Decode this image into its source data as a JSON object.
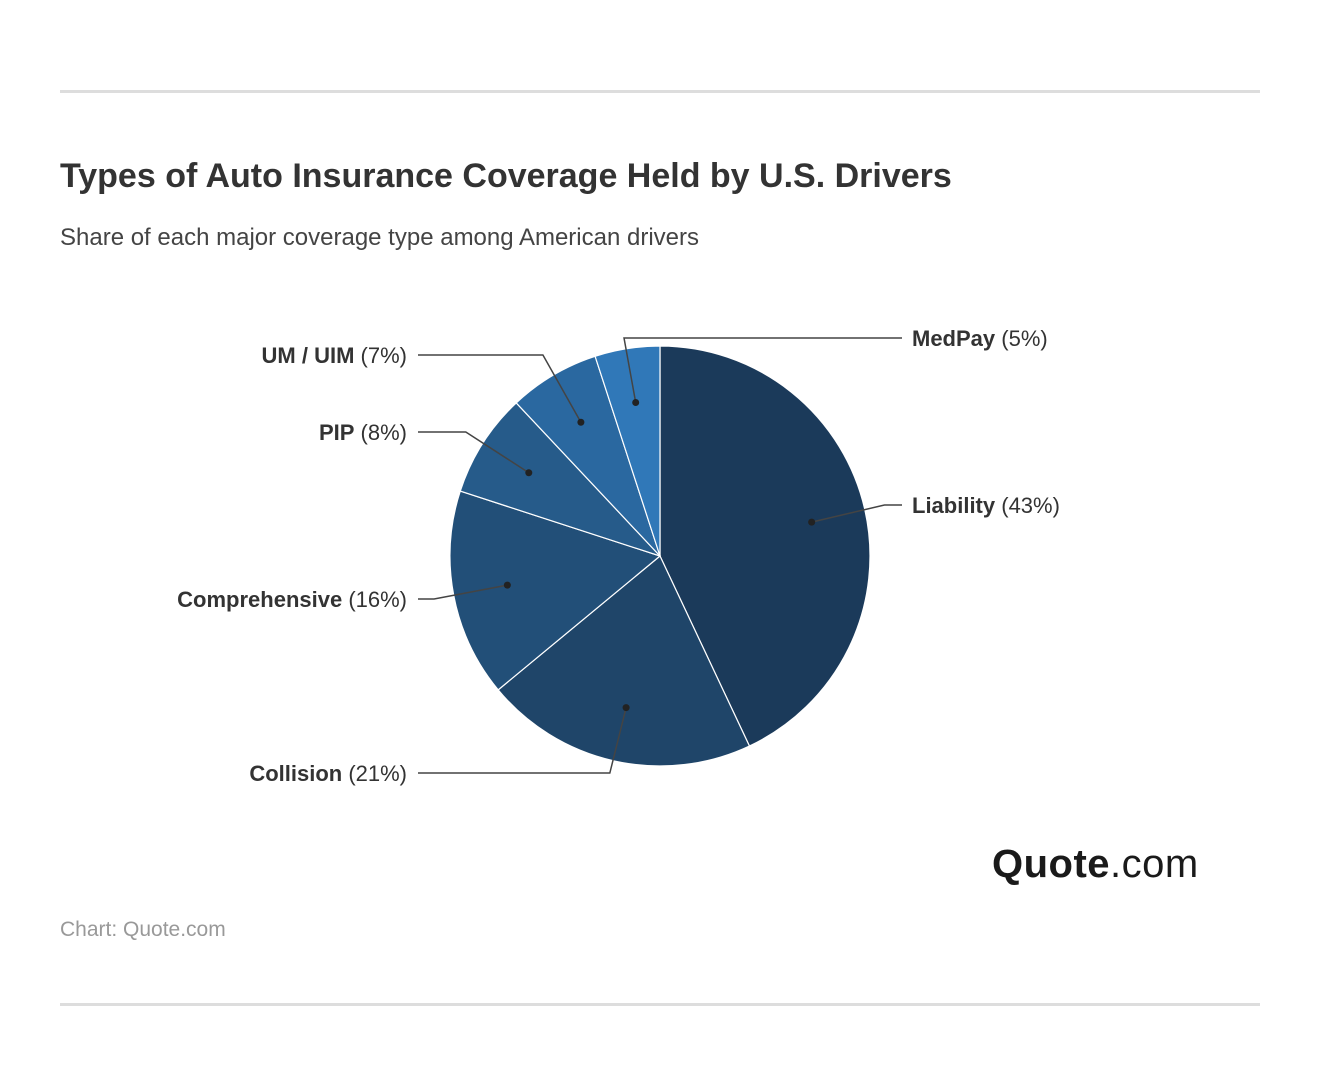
{
  "header": {
    "title": "Types of Auto Insurance Coverage Held by U.S. Drivers",
    "subtitle": "Share of each major coverage type among American drivers"
  },
  "footer": {
    "source": "Chart: Quote.com",
    "logo_brand": "Quote",
    "logo_tld": ".com"
  },
  "chart_data": {
    "type": "pie",
    "title": "Types of Auto Insurance Coverage Held by U.S. Drivers",
    "subtitle": "Share of each major coverage type among American drivers",
    "start_angle_deg": 0,
    "direction": "clockwise",
    "slices": [
      {
        "label": "Liability",
        "value": 43,
        "value_label": "(43%)",
        "color": "#1b3a5a"
      },
      {
        "label": "Collision",
        "value": 21,
        "value_label": "(21%)",
        "color": "#1f4569"
      },
      {
        "label": "Comprehensive",
        "value": 16,
        "value_label": "(16%)",
        "color": "#224f78"
      },
      {
        "label": "PIP",
        "value": 8,
        "value_label": "(8%)",
        "color": "#265b8a"
      },
      {
        "label": "UM / UIM",
        "value": 7,
        "value_label": "(7%)",
        "color": "#2a68a0"
      },
      {
        "label": "MedPay",
        "value": 5,
        "value_label": "(5%)",
        "color": "#3078b8"
      }
    ]
  }
}
